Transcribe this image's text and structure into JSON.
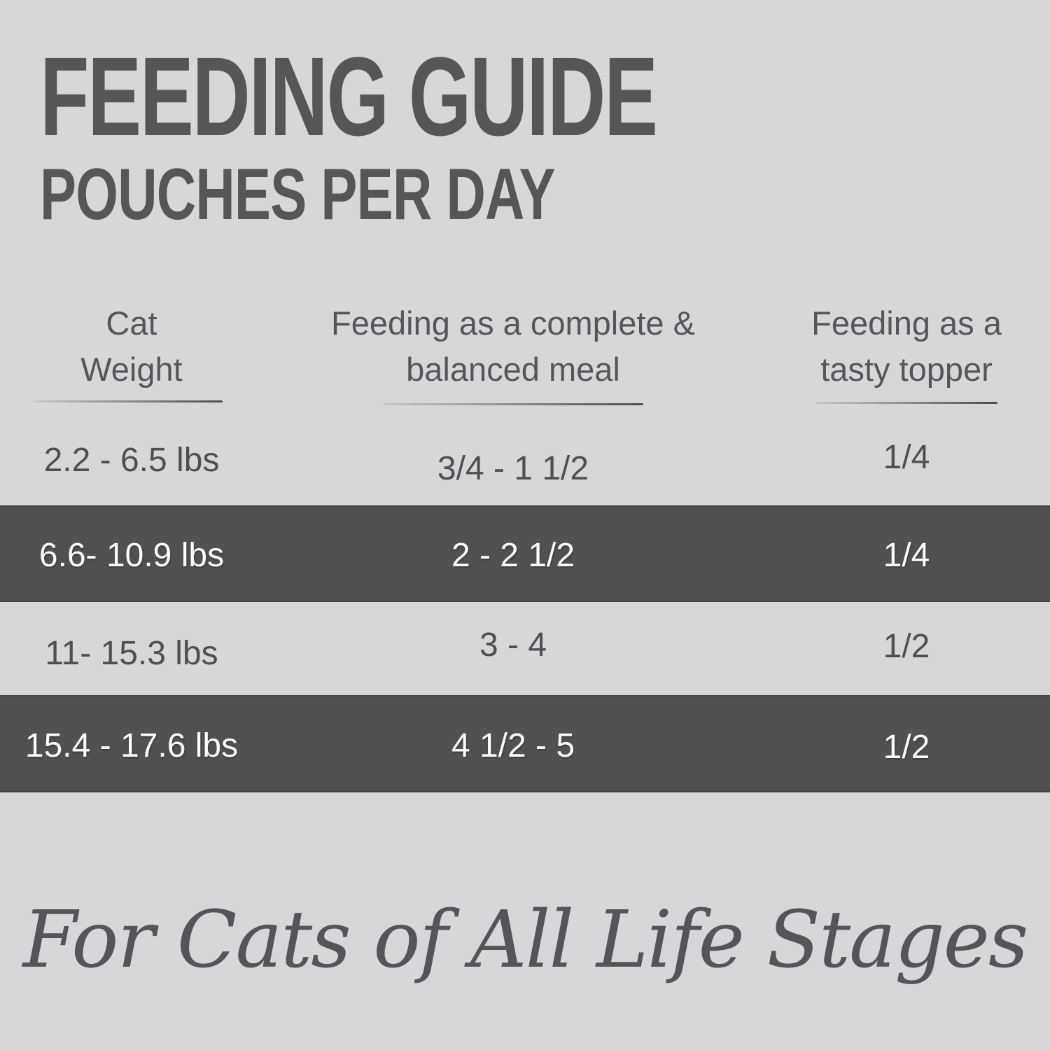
{
  "title": {
    "line1": "FEEDING GUIDE",
    "line2": "POUCHES PER DAY"
  },
  "table": {
    "columns": [
      {
        "line1": "Cat",
        "line2": "Weight"
      },
      {
        "line1": "Feeding as a complete &",
        "line2": "balanced meal"
      },
      {
        "line1": "Feeding as a",
        "line2": "tasty topper"
      }
    ],
    "rows": [
      {
        "weight": "2.2 - 6.5 lbs",
        "meal": "3/4 - 1 1/2",
        "topper": "1/4",
        "highlighted": false
      },
      {
        "weight": "6.6- 10.9 lbs",
        "meal": "2 - 2 1/2",
        "topper": "1/4",
        "highlighted": true
      },
      {
        "weight": "11- 15.3 lbs",
        "meal": "3 - 4",
        "topper": "1/2",
        "highlighted": false
      },
      {
        "weight": "15.4 - 17.6 lbs",
        "meal": "4 1/2 - 5",
        "topper": "1/2",
        "highlighted": true
      }
    ]
  },
  "footer": {
    "tagline": "For Cats of All Life Stages"
  },
  "colors": {
    "background": "#d6d7d8",
    "highlight_band": "#515154",
    "dark_text": "#55565a",
    "band_text": "#fdfdfd"
  }
}
